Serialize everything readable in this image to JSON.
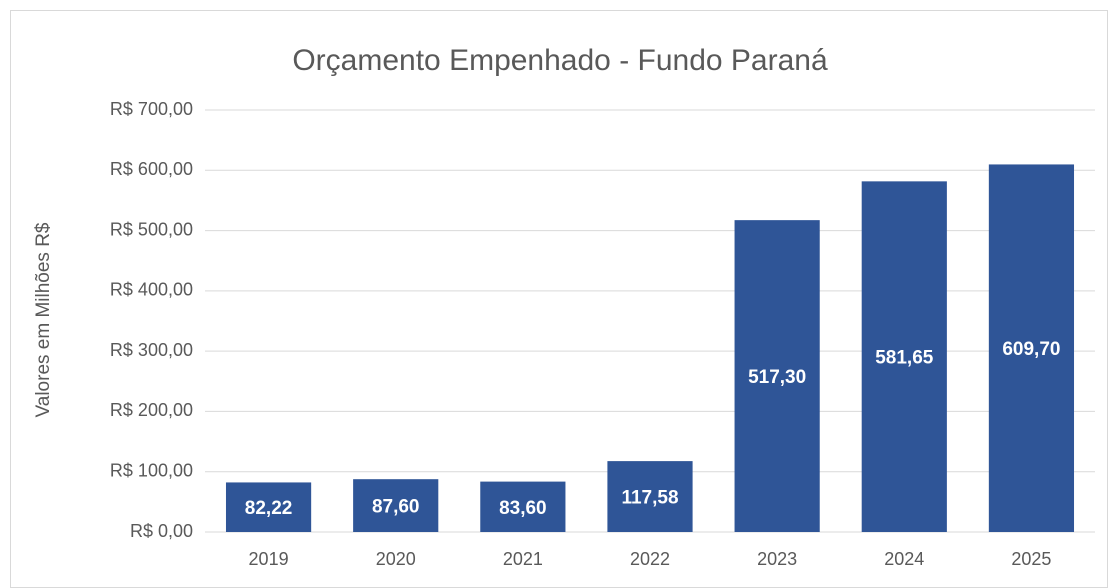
{
  "chart_data": {
    "type": "bar",
    "title": "Orçamento Empenhado - Fundo Paraná",
    "ylabel": "Valores em Milhões R$",
    "categories": [
      "2019",
      "2020",
      "2021",
      "2022",
      "2023",
      "2024",
      "2025"
    ],
    "values": [
      82.22,
      87.6,
      83.6,
      117.58,
      517.3,
      581.65,
      609.7
    ],
    "value_labels": [
      "82,22",
      "87,60",
      "83,60",
      "117,58",
      "517,30",
      "581,65",
      "609,70"
    ],
    "color": "#2f5597",
    "ylim": [
      0,
      700
    ],
    "yticks": [
      {
        "value": 0,
        "label": "R$ 0,00"
      },
      {
        "value": 100,
        "label": "R$ 100,00"
      },
      {
        "value": 200,
        "label": "R$ 200,00"
      },
      {
        "value": 300,
        "label": "R$ 300,00"
      },
      {
        "value": 400,
        "label": "R$ 400,00"
      },
      {
        "value": 500,
        "label": "R$ 500,00"
      },
      {
        "value": 600,
        "label": "R$ 600,00"
      },
      {
        "value": 700,
        "label": "R$ 700,00"
      }
    ],
    "grid": true
  }
}
